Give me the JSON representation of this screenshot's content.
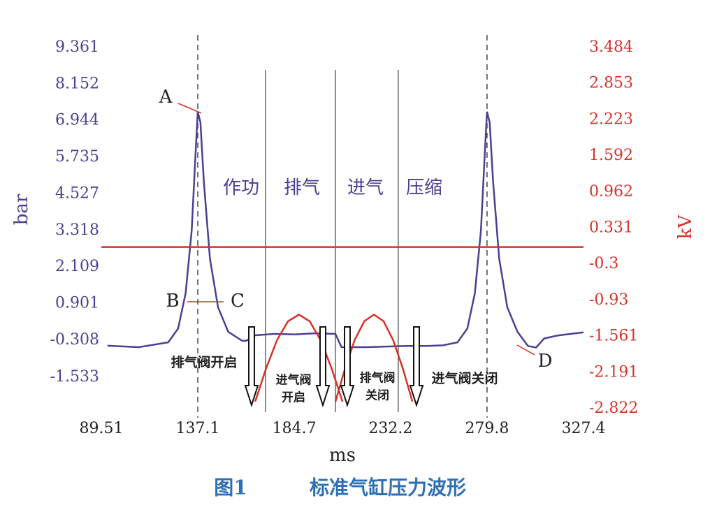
{
  "chart_data": {
    "type": "line",
    "caption": {
      "number": "图1",
      "title": "标准气缸压力波形"
    },
    "x_label": "ms",
    "y_label": "bar",
    "y2_label": "kV",
    "xlim": [
      89.51,
      327.4
    ],
    "xticks": [
      89.51,
      137.1,
      184.7,
      232.2,
      279.8,
      327.4
    ],
    "ylim": [
      -2.57,
      9.361
    ],
    "yticks": [
      9.361,
      8.152,
      6.944,
      5.735,
      4.527,
      3.318,
      2.109,
      0.901,
      -0.308,
      -1.533
    ],
    "y2lim": [
      -2.822,
      3.484
    ],
    "y2ticks": [
      3.484,
      2.853,
      2.223,
      1.592,
      0.962,
      0.331,
      -0.3,
      -0.93,
      -1.561,
      -2.191,
      -2.822
    ],
    "series": [
      {
        "color": "#4b3f93",
        "x": [
          92.5,
          108,
          122.5,
          127.4,
          131.1,
          134.1,
          135.8,
          137.1,
          138.4,
          140.1,
          143.1,
          147.1,
          152.1,
          159,
          161,
          165,
          175,
          185,
          195,
          205,
          208,
          220,
          240,
          250,
          258,
          265.2,
          270.1,
          273.8,
          276.8,
          278.5,
          279.8,
          281.1,
          282.8,
          285.8,
          289.8,
          294.8,
          300,
          304,
          308,
          315,
          327.4
        ],
        "values": [
          -0.49,
          -0.54,
          -0.38,
          0.08,
          1.24,
          3.31,
          5.62,
          7.24,
          6.89,
          4.93,
          2.39,
          0.78,
          -0.03,
          -0.33,
          -0.33,
          -0.15,
          -0.1,
          -0.12,
          -0.08,
          -0.1,
          -0.54,
          -0.54,
          -0.5,
          -0.5,
          -0.48,
          -0.38,
          0.08,
          1.24,
          3.31,
          5.62,
          7.24,
          6.89,
          4.93,
          2.39,
          0.78,
          -0.03,
          -0.5,
          -0.55,
          -0.25,
          -0.15,
          -0.05
        ]
      },
      {
        "color": "#d6332a",
        "axis": "y2",
        "x": [
          89.51,
          327.4
        ],
        "values": [
          0,
          0
        ]
      },
      {
        "color": "#d6332a",
        "axis": "y2",
        "x": [
          165.4,
          170.8,
          176.2,
          181.6,
          187.0,
          192.3,
          197.7,
          203.1,
          208.5
        ],
        "values": [
          -2.7,
          -2.118,
          -1.625,
          -1.296,
          -1.18,
          -1.296,
          -1.625,
          -2.118,
          -2.7
        ]
      },
      {
        "color": "#d6332a",
        "axis": "y2",
        "x": [
          205,
          209.75,
          214.5,
          219.25,
          224,
          228.75,
          233.5,
          238.25,
          243
        ],
        "values": [
          -2.7,
          -2.118,
          -1.625,
          -1.296,
          -1.18,
          -1.296,
          -1.625,
          -2.118,
          -2.7
        ]
      }
    ],
    "dashed_lines": [
      137.1,
      279.8
    ],
    "phase_lines": [
      170.5,
      205,
      236
    ],
    "phases": [
      "作功",
      "排气",
      "进气",
      "压缩"
    ],
    "points": [
      "A",
      "B",
      "C",
      "D"
    ],
    "valve_events": [
      [
        "排气阀开启"
      ],
      [
        "进气阀",
        "开启"
      ],
      [
        "排气阀",
        "关闭"
      ],
      [
        "进气阀关闭"
      ]
    ]
  }
}
